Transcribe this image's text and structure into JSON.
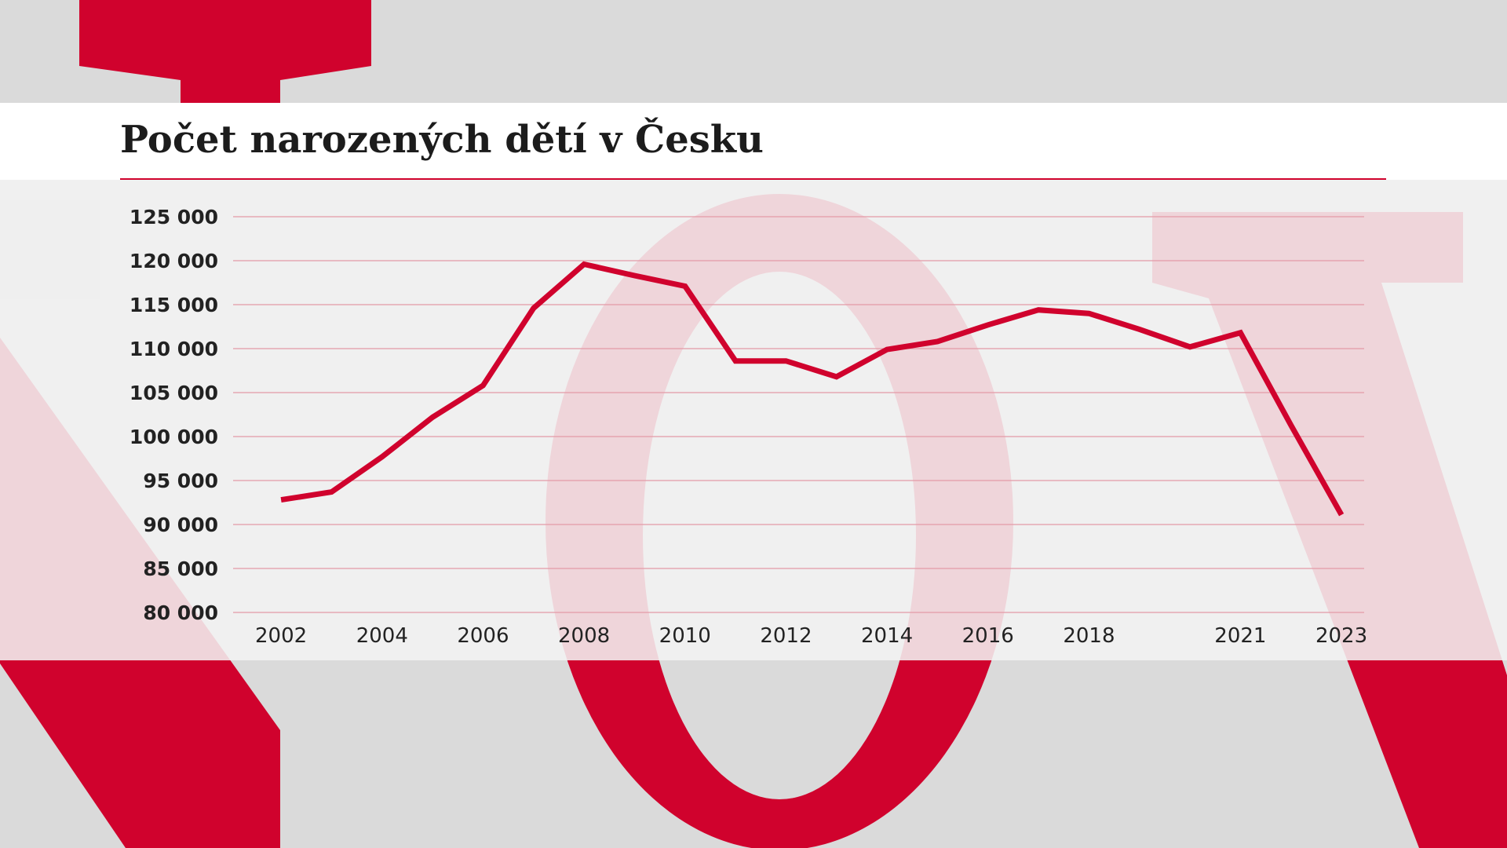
{
  "colors": {
    "accent": "#d0022d",
    "background": "#dadada",
    "panel": "#f0f0f0",
    "gridline": "#e49aa6",
    "text": "#1c1c1c"
  },
  "chart_data": {
    "type": "line",
    "title": "Počet narozených dětí v Česku",
    "xlabel": "",
    "ylabel": "",
    "ylim": [
      80000,
      125000
    ],
    "y_ticks": [
      80000,
      85000,
      90000,
      95000,
      100000,
      105000,
      110000,
      115000,
      120000,
      125000
    ],
    "y_tick_labels": [
      "80 000",
      "85 000",
      "90 000",
      "95 000",
      "100 000",
      "105 000",
      "110 000",
      "115 000",
      "120 000",
      "125 000"
    ],
    "x_tick_labels": [
      "2002",
      "2004",
      "2006",
      "2008",
      "2010",
      "2012",
      "2014",
      "2016",
      "2018",
      "2021",
      "2023"
    ],
    "grid": true,
    "legend": "none",
    "series": [
      {
        "color": "#d0022d",
        "points": [
          {
            "x": 2002,
            "y": 92800
          },
          {
            "x": 2003,
            "y": 93700
          },
          {
            "x": 2004,
            "y": 97700
          },
          {
            "x": 2005,
            "y": 102200
          },
          {
            "x": 2006,
            "y": 105800
          },
          {
            "x": 2007,
            "y": 114600
          },
          {
            "x": 2008,
            "y": 119600
          },
          {
            "x": 2009,
            "y": 118300
          },
          {
            "x": 2010,
            "y": 117100
          },
          {
            "x": 2011,
            "y": 108600
          },
          {
            "x": 2012,
            "y": 108600
          },
          {
            "x": 2013,
            "y": 106800
          },
          {
            "x": 2014,
            "y": 109900
          },
          {
            "x": 2015,
            "y": 110800
          },
          {
            "x": 2016,
            "y": 112700
          },
          {
            "x": 2017,
            "y": 114400
          },
          {
            "x": 2018,
            "y": 114000
          },
          {
            "x": 2019,
            "y": 112200
          },
          {
            "x": 2020,
            "y": 110200
          },
          {
            "x": 2021,
            "y": 111800
          },
          {
            "x": 2022,
            "y": 101300
          },
          {
            "x": 2023,
            "y": 91100
          }
        ]
      }
    ]
  }
}
